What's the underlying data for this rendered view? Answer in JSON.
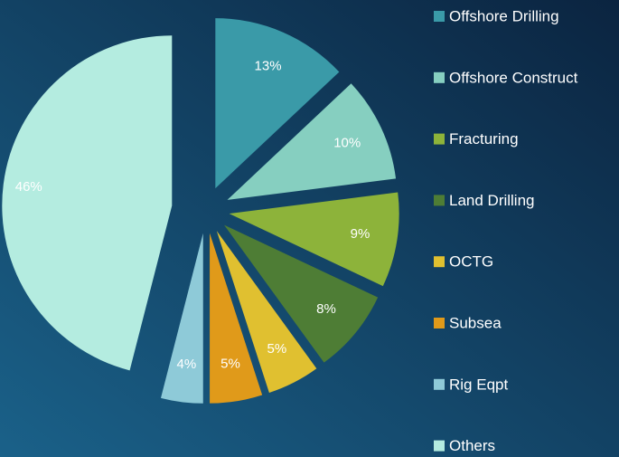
{
  "chart_data": {
    "type": "pie",
    "categories": [
      "Offshore Drilling",
      "Offshore Construct",
      "Fracturing",
      "Land Drilling",
      "OCTG",
      "Subsea",
      "Rig Eqpt",
      "Others"
    ],
    "values": [
      13,
      10,
      9,
      8,
      5,
      5,
      4,
      46
    ],
    "value_labels": [
      "13%",
      "10%",
      "9%",
      "8%",
      "5%",
      "5%",
      "4%",
      "46%"
    ],
    "colors": [
      "#3a9aa8",
      "#86cfc0",
      "#8db33a",
      "#4e7d35",
      "#e0c030",
      "#e09a1a",
      "#8ecad8",
      "#b4ece0"
    ],
    "legend": "right"
  }
}
